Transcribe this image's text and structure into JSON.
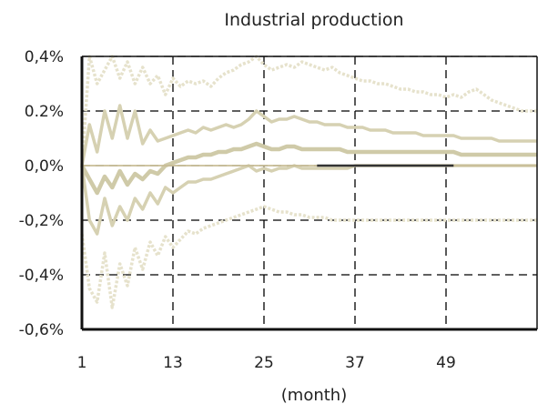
{
  "chart_data": {
    "type": "line",
    "title": "Industrial production",
    "xlabel": "(month)",
    "ylabel": "",
    "x_ticks": [
      1,
      13,
      25,
      37,
      49
    ],
    "x_range": [
      1,
      61
    ],
    "y_ticks": [
      0.4,
      0.2,
      0.0,
      -0.2,
      -0.4,
      -0.6
    ],
    "y_tick_labels": [
      "0,4%",
      "0.2%",
      "0,0%",
      "-0,2%",
      "-0,4%",
      "-0,6%"
    ],
    "ylim": [
      -0.6,
      0.4
    ],
    "y_unit": "%",
    "grid": "dashed",
    "legend": "none",
    "colors": {
      "axes": "#111111",
      "grid": "#000000",
      "median": "#cfcaa8",
      "inner_band": "#d6d1b2",
      "outer_band": "#e6e2cc",
      "zero_line": "#c8bd96",
      "dark_segment": "#333333"
    },
    "series": [
      {
        "role": "upper-outer-band",
        "values": [
          [
            1,
            0.0
          ],
          [
            2,
            0.4
          ],
          [
            3,
            0.3
          ],
          [
            4,
            0.35
          ],
          [
            5,
            0.4
          ],
          [
            6,
            0.32
          ],
          [
            7,
            0.38
          ],
          [
            8,
            0.3
          ],
          [
            9,
            0.36
          ],
          [
            10,
            0.3
          ],
          [
            11,
            0.33
          ],
          [
            12,
            0.26
          ],
          [
            13,
            0.32
          ],
          [
            14,
            0.29
          ],
          [
            15,
            0.31
          ],
          [
            16,
            0.3
          ],
          [
            17,
            0.31
          ],
          [
            18,
            0.29
          ],
          [
            19,
            0.32
          ],
          [
            20,
            0.34
          ],
          [
            21,
            0.35
          ],
          [
            22,
            0.37
          ],
          [
            23,
            0.38
          ],
          [
            24,
            0.4
          ],
          [
            25,
            0.37
          ],
          [
            26,
            0.35
          ],
          [
            27,
            0.36
          ],
          [
            28,
            0.37
          ],
          [
            29,
            0.36
          ],
          [
            30,
            0.38
          ],
          [
            31,
            0.37
          ],
          [
            32,
            0.36
          ],
          [
            33,
            0.35
          ],
          [
            34,
            0.36
          ],
          [
            35,
            0.34
          ],
          [
            36,
            0.33
          ],
          [
            37,
            0.32
          ],
          [
            38,
            0.31
          ],
          [
            39,
            0.31
          ],
          [
            40,
            0.3
          ],
          [
            41,
            0.3
          ],
          [
            42,
            0.29
          ],
          [
            43,
            0.28
          ],
          [
            44,
            0.28
          ],
          [
            45,
            0.27
          ],
          [
            46,
            0.27
          ],
          [
            47,
            0.26
          ],
          [
            48,
            0.26
          ],
          [
            49,
            0.25
          ],
          [
            50,
            0.26
          ],
          [
            51,
            0.25
          ],
          [
            52,
            0.27
          ],
          [
            53,
            0.28
          ],
          [
            54,
            0.26
          ],
          [
            55,
            0.24
          ],
          [
            56,
            0.23
          ],
          [
            57,
            0.22
          ],
          [
            58,
            0.21
          ],
          [
            59,
            0.2
          ],
          [
            60,
            0.2
          ],
          [
            61,
            0.2
          ]
        ]
      },
      {
        "role": "upper-inner-band",
        "values": [
          [
            1,
            0.0
          ],
          [
            2,
            0.15
          ],
          [
            3,
            0.05
          ],
          [
            4,
            0.2
          ],
          [
            5,
            0.1
          ],
          [
            6,
            0.22
          ],
          [
            7,
            0.1
          ],
          [
            8,
            0.2
          ],
          [
            9,
            0.08
          ],
          [
            10,
            0.13
          ],
          [
            11,
            0.09
          ],
          [
            12,
            0.1
          ],
          [
            13,
            0.11
          ],
          [
            14,
            0.12
          ],
          [
            15,
            0.13
          ],
          [
            16,
            0.12
          ],
          [
            17,
            0.14
          ],
          [
            18,
            0.13
          ],
          [
            19,
            0.14
          ],
          [
            20,
            0.15
          ],
          [
            21,
            0.14
          ],
          [
            22,
            0.15
          ],
          [
            23,
            0.17
          ],
          [
            24,
            0.2
          ],
          [
            25,
            0.18
          ],
          [
            26,
            0.16
          ],
          [
            27,
            0.17
          ],
          [
            28,
            0.17
          ],
          [
            29,
            0.18
          ],
          [
            30,
            0.17
          ],
          [
            31,
            0.16
          ],
          [
            32,
            0.16
          ],
          [
            33,
            0.15
          ],
          [
            34,
            0.15
          ],
          [
            35,
            0.15
          ],
          [
            36,
            0.14
          ],
          [
            37,
            0.14
          ],
          [
            38,
            0.14
          ],
          [
            39,
            0.13
          ],
          [
            40,
            0.13
          ],
          [
            41,
            0.13
          ],
          [
            42,
            0.12
          ],
          [
            43,
            0.12
          ],
          [
            44,
            0.12
          ],
          [
            45,
            0.12
          ],
          [
            46,
            0.11
          ],
          [
            47,
            0.11
          ],
          [
            48,
            0.11
          ],
          [
            49,
            0.11
          ],
          [
            50,
            0.11
          ],
          [
            51,
            0.1
          ],
          [
            52,
            0.1
          ],
          [
            53,
            0.1
          ],
          [
            54,
            0.1
          ],
          [
            55,
            0.1
          ],
          [
            56,
            0.09
          ],
          [
            57,
            0.09
          ],
          [
            58,
            0.09
          ],
          [
            59,
            0.09
          ],
          [
            60,
            0.09
          ],
          [
            61,
            0.09
          ]
        ]
      },
      {
        "role": "median",
        "values": [
          [
            1,
            0.0
          ],
          [
            2,
            -0.05
          ],
          [
            3,
            -0.1
          ],
          [
            4,
            -0.04
          ],
          [
            5,
            -0.08
          ],
          [
            6,
            -0.02
          ],
          [
            7,
            -0.07
          ],
          [
            8,
            -0.03
          ],
          [
            9,
            -0.05
          ],
          [
            10,
            -0.02
          ],
          [
            11,
            -0.03
          ],
          [
            12,
            0.0
          ],
          [
            13,
            0.01
          ],
          [
            14,
            0.02
          ],
          [
            15,
            0.03
          ],
          [
            16,
            0.03
          ],
          [
            17,
            0.04
          ],
          [
            18,
            0.04
          ],
          [
            19,
            0.05
          ],
          [
            20,
            0.05
          ],
          [
            21,
            0.06
          ],
          [
            22,
            0.06
          ],
          [
            23,
            0.07
          ],
          [
            24,
            0.08
          ],
          [
            25,
            0.07
          ],
          [
            26,
            0.06
          ],
          [
            27,
            0.06
          ],
          [
            28,
            0.07
          ],
          [
            29,
            0.07
          ],
          [
            30,
            0.06
          ],
          [
            31,
            0.06
          ],
          [
            32,
            0.06
          ],
          [
            33,
            0.06
          ],
          [
            34,
            0.06
          ],
          [
            35,
            0.06
          ],
          [
            36,
            0.05
          ],
          [
            37,
            0.05
          ],
          [
            38,
            0.05
          ],
          [
            39,
            0.05
          ],
          [
            40,
            0.05
          ],
          [
            41,
            0.05
          ],
          [
            42,
            0.05
          ],
          [
            43,
            0.05
          ],
          [
            44,
            0.05
          ],
          [
            45,
            0.05
          ],
          [
            46,
            0.05
          ],
          [
            47,
            0.05
          ],
          [
            48,
            0.05
          ],
          [
            49,
            0.05
          ],
          [
            50,
            0.05
          ],
          [
            51,
            0.04
          ],
          [
            52,
            0.04
          ],
          [
            53,
            0.04
          ],
          [
            54,
            0.04
          ],
          [
            55,
            0.04
          ],
          [
            56,
            0.04
          ],
          [
            57,
            0.04
          ],
          [
            58,
            0.04
          ],
          [
            59,
            0.04
          ],
          [
            60,
            0.04
          ],
          [
            61,
            0.04
          ]
        ]
      },
      {
        "role": "lower-inner-band",
        "values": [
          [
            1,
            0.0
          ],
          [
            2,
            -0.2
          ],
          [
            3,
            -0.25
          ],
          [
            4,
            -0.12
          ],
          [
            5,
            -0.22
          ],
          [
            6,
            -0.15
          ],
          [
            7,
            -0.2
          ],
          [
            8,
            -0.12
          ],
          [
            9,
            -0.16
          ],
          [
            10,
            -0.1
          ],
          [
            11,
            -0.14
          ],
          [
            12,
            -0.08
          ],
          [
            13,
            -0.1
          ],
          [
            14,
            -0.08
          ],
          [
            15,
            -0.06
          ],
          [
            16,
            -0.06
          ],
          [
            17,
            -0.05
          ],
          [
            18,
            -0.05
          ],
          [
            19,
            -0.04
          ],
          [
            20,
            -0.03
          ],
          [
            21,
            -0.02
          ],
          [
            22,
            -0.01
          ],
          [
            23,
            0.0
          ],
          [
            24,
            -0.02
          ],
          [
            25,
            -0.01
          ],
          [
            26,
            -0.02
          ],
          [
            27,
            -0.01
          ],
          [
            28,
            -0.01
          ],
          [
            29,
            0.0
          ],
          [
            30,
            -0.01
          ],
          [
            31,
            -0.01
          ],
          [
            32,
            -0.01
          ],
          [
            33,
            -0.01
          ],
          [
            34,
            -0.01
          ],
          [
            35,
            -0.01
          ],
          [
            36,
            -0.01
          ],
          [
            37,
            0.0
          ],
          [
            38,
            0.0
          ],
          [
            39,
            0.0
          ],
          [
            40,
            0.0
          ],
          [
            41,
            0.0
          ],
          [
            42,
            0.0
          ],
          [
            43,
            0.0
          ],
          [
            44,
            0.0
          ],
          [
            45,
            0.0
          ],
          [
            46,
            0.0
          ],
          [
            47,
            0.0
          ],
          [
            48,
            0.0
          ],
          [
            49,
            0.0
          ],
          [
            50,
            0.0
          ],
          [
            51,
            0.0
          ],
          [
            52,
            0.0
          ],
          [
            53,
            0.0
          ],
          [
            54,
            0.0
          ],
          [
            55,
            0.0
          ],
          [
            56,
            0.0
          ],
          [
            57,
            0.0
          ],
          [
            58,
            0.0
          ],
          [
            59,
            0.0
          ],
          [
            60,
            0.0
          ],
          [
            61,
            0.0
          ]
        ]
      },
      {
        "role": "lower-outer-band",
        "values": [
          [
            1,
            -0.25
          ],
          [
            2,
            -0.45
          ],
          [
            3,
            -0.5
          ],
          [
            4,
            -0.32
          ],
          [
            5,
            -0.52
          ],
          [
            6,
            -0.36
          ],
          [
            7,
            -0.44
          ],
          [
            8,
            -0.3
          ],
          [
            9,
            -0.38
          ],
          [
            10,
            -0.28
          ],
          [
            11,
            -0.33
          ],
          [
            12,
            -0.26
          ],
          [
            13,
            -0.3
          ],
          [
            14,
            -0.27
          ],
          [
            15,
            -0.24
          ],
          [
            16,
            -0.25
          ],
          [
            17,
            -0.23
          ],
          [
            18,
            -0.22
          ],
          [
            19,
            -0.21
          ],
          [
            20,
            -0.2
          ],
          [
            21,
            -0.19
          ],
          [
            22,
            -0.18
          ],
          [
            23,
            -0.17
          ],
          [
            24,
            -0.16
          ],
          [
            25,
            -0.15
          ],
          [
            26,
            -0.16
          ],
          [
            27,
            -0.17
          ],
          [
            28,
            -0.17
          ],
          [
            29,
            -0.18
          ],
          [
            30,
            -0.18
          ],
          [
            31,
            -0.19
          ],
          [
            32,
            -0.19
          ],
          [
            33,
            -0.19
          ],
          [
            34,
            -0.2
          ],
          [
            35,
            -0.2
          ],
          [
            36,
            -0.2
          ],
          [
            37,
            -0.2
          ],
          [
            38,
            -0.2
          ],
          [
            39,
            -0.2
          ],
          [
            40,
            -0.2
          ],
          [
            41,
            -0.2
          ],
          [
            42,
            -0.2
          ],
          [
            43,
            -0.2
          ],
          [
            44,
            -0.2
          ],
          [
            45,
            -0.2
          ],
          [
            46,
            -0.2
          ],
          [
            47,
            -0.2
          ],
          [
            48,
            -0.2
          ],
          [
            49,
            -0.2
          ],
          [
            50,
            -0.2
          ],
          [
            51,
            -0.2
          ],
          [
            52,
            -0.2
          ],
          [
            53,
            -0.2
          ],
          [
            54,
            -0.2
          ],
          [
            55,
            -0.2
          ],
          [
            56,
            -0.2
          ],
          [
            57,
            -0.2
          ],
          [
            58,
            -0.2
          ],
          [
            59,
            -0.2
          ],
          [
            60,
            -0.2
          ],
          [
            61,
            -0.2
          ]
        ]
      },
      {
        "role": "zero-baseline",
        "values": [
          [
            1,
            0.0
          ],
          [
            61,
            0.0
          ]
        ]
      },
      {
        "role": "dark-segment",
        "values": [
          [
            32,
            0.0
          ],
          [
            50,
            0.0
          ]
        ]
      }
    ]
  }
}
